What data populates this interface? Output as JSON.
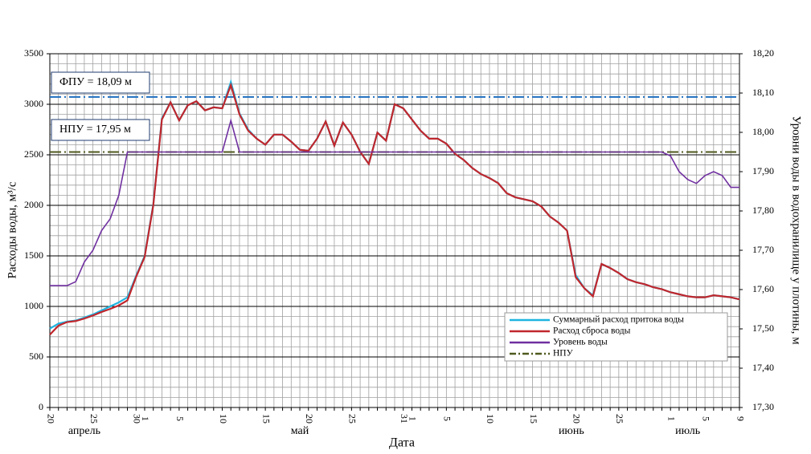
{
  "chart_data": {
    "type": "line",
    "x_label": "Дата",
    "y_label": "Расходы воды, м³/с",
    "y2_label": "Уровни воды в водохранилище у плотины, м",
    "categories": [
      "20",
      null,
      null,
      null,
      null,
      "25",
      null,
      null,
      null,
      null,
      "30",
      "1",
      null,
      null,
      null,
      "5",
      null,
      null,
      null,
      null,
      "10",
      null,
      null,
      null,
      null,
      "15",
      null,
      null,
      null,
      null,
      "20",
      null,
      null,
      null,
      null,
      "25",
      null,
      null,
      null,
      null,
      null,
      "31",
      "1",
      null,
      null,
      null,
      "5",
      null,
      null,
      null,
      null,
      "10",
      null,
      null,
      null,
      null,
      "15",
      null,
      null,
      null,
      null,
      "20",
      null,
      null,
      null,
      null,
      "25",
      null,
      null,
      null,
      null,
      null,
      "1",
      null,
      null,
      null,
      "5",
      null,
      null,
      null,
      "9"
    ],
    "months": [
      "апрель",
      "май",
      "июнь",
      "июль"
    ],
    "series": [
      {
        "name": "Суммарный расход притока воды",
        "color": "#1fb4e0",
        "values": [
          780,
          830,
          850,
          860,
          890,
          920,
          960,
          1000,
          1040,
          1090,
          1300,
          1500,
          2010,
          2860,
          3020,
          2840,
          2990,
          3030,
          2940,
          2970,
          2960,
          3220,
          2910,
          2750,
          2660,
          2600,
          2700,
          2700,
          2630,
          2550,
          2540,
          2660,
          2830,
          2590,
          2820,
          2700,
          2530,
          2410,
          2720,
          2640,
          3000,
          2960,
          2850,
          2740,
          2660,
          2660,
          2610,
          2510,
          2450,
          2370,
          2310,
          2270,
          2220,
          2120,
          2080,
          2060,
          2040,
          1990,
          1890,
          1830,
          1750,
          1310,
          1180,
          1110,
          1420,
          1380,
          1330,
          1270,
          1240,
          1220,
          1190,
          1170,
          1140,
          1120,
          1100,
          1090,
          1090,
          1110,
          1100,
          1090,
          1070
        ]
      },
      {
        "name": "Расход  сброса воды",
        "color": "#c0272d",
        "values": [
          720,
          810,
          845,
          855,
          880,
          910,
          945,
          975,
          1010,
          1060,
          1290,
          1490,
          2000,
          2850,
          3020,
          2840,
          2990,
          3030,
          2940,
          2970,
          2960,
          3190,
          2900,
          2740,
          2660,
          2600,
          2700,
          2700,
          2630,
          2550,
          2540,
          2660,
          2830,
          2590,
          2820,
          2700,
          2530,
          2410,
          2720,
          2640,
          3000,
          2960,
          2850,
          2740,
          2660,
          2660,
          2610,
          2510,
          2450,
          2370,
          2310,
          2270,
          2220,
          2120,
          2080,
          2060,
          2040,
          1990,
          1890,
          1830,
          1750,
          1290,
          1180,
          1100,
          1420,
          1380,
          1330,
          1270,
          1240,
          1220,
          1190,
          1170,
          1140,
          1120,
          1100,
          1090,
          1090,
          1110,
          1100,
          1090,
          1070
        ]
      },
      {
        "name": "Уровень воды",
        "color": "#7030a0",
        "axis": "y2",
        "values": [
          17.61,
          17.61,
          17.61,
          17.62,
          17.67,
          17.7,
          17.75,
          17.78,
          17.84,
          17.95,
          17.95,
          17.95,
          17.95,
          17.95,
          17.95,
          17.95,
          17.95,
          17.95,
          17.95,
          17.95,
          17.95,
          18.03,
          17.95,
          17.95,
          17.95,
          17.95,
          17.95,
          17.95,
          17.95,
          17.95,
          17.95,
          17.95,
          17.95,
          17.95,
          17.95,
          17.95,
          17.95,
          17.95,
          17.95,
          17.95,
          17.95,
          17.95,
          17.95,
          17.95,
          17.95,
          17.95,
          17.95,
          17.95,
          17.95,
          17.95,
          17.95,
          17.95,
          17.95,
          17.95,
          17.95,
          17.95,
          17.95,
          17.95,
          17.95,
          17.95,
          17.95,
          17.95,
          17.95,
          17.95,
          17.95,
          17.95,
          17.95,
          17.95,
          17.95,
          17.95,
          17.95,
          17.95,
          17.94,
          17.9,
          17.88,
          17.87,
          17.89,
          17.9,
          17.89,
          17.86,
          17.86
        ]
      }
    ],
    "reference_lines": [
      {
        "name": "НПУ",
        "label": "НПУ = 17,95 м",
        "value": 17.95,
        "color": "#4f5a1e",
        "axis": "y2"
      },
      {
        "label": "ФПУ = 18,09 м",
        "value": 18.09,
        "color": "#1f6fbf",
        "axis": "y2"
      }
    ],
    "ylim": [
      0,
      3500
    ],
    "yticks": [
      0,
      500,
      1000,
      1500,
      2000,
      2500,
      3000,
      3500
    ],
    "yminorticks": [
      100,
      200,
      300,
      400,
      600,
      700,
      800,
      900,
      1100,
      1200,
      1300,
      1400,
      1600,
      1700,
      1800,
      1900,
      2100,
      2200,
      2300,
      2400,
      2600,
      2700,
      2800,
      2900,
      3100,
      3200,
      3300,
      3400
    ],
    "y2lim": [
      17.3,
      18.2
    ],
    "y2ticks": [
      {
        "value": 17.3,
        "label": "17,30"
      },
      {
        "value": 17.4,
        "label": "17,40"
      },
      {
        "value": 17.5,
        "label": "17,50"
      },
      {
        "value": 17.6,
        "label": "17,60"
      },
      {
        "value": 17.7,
        "label": "17,70"
      },
      {
        "value": 17.8,
        "label": "17,80"
      },
      {
        "value": 17.9,
        "label": "17,90"
      },
      {
        "value": 18.0,
        "label": "18,00"
      },
      {
        "value": 18.1,
        "label": "18,10"
      },
      {
        "value": 18.2,
        "label": "18,20"
      }
    ],
    "grid": true,
    "legend": "lower right"
  }
}
